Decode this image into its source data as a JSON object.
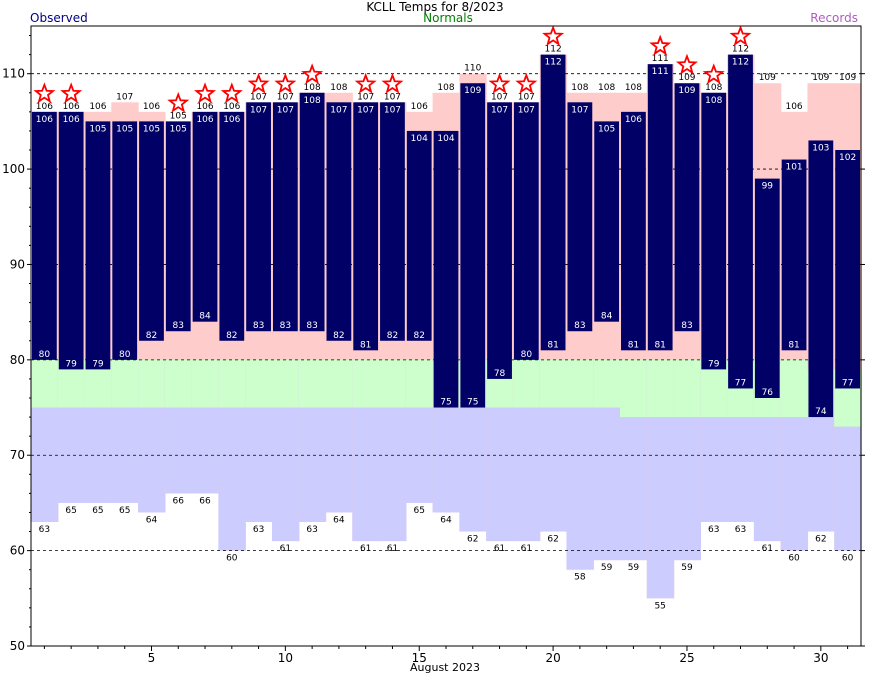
{
  "chart_data": {
    "type": "bar",
    "title": "KCLL Temps for 8/2023",
    "legend": [
      "Observed",
      "Normals",
      "Records"
    ],
    "xlabel": "August 2023",
    "ylabel": "",
    "ylim": [
      50,
      115
    ],
    "xlim": [
      0.5,
      31.5
    ],
    "y_ticks": [
      50,
      60,
      70,
      80,
      90,
      100,
      110
    ],
    "x_ticks": [
      5,
      10,
      15,
      20,
      25,
      30
    ],
    "grid": "horizontal dashed",
    "days": [
      1,
      2,
      3,
      4,
      5,
      6,
      7,
      8,
      9,
      10,
      11,
      12,
      13,
      14,
      15,
      16,
      17,
      18,
      19,
      20,
      21,
      22,
      23,
      24,
      25,
      26,
      27,
      28,
      29,
      30,
      31
    ],
    "observed_high": [
      106,
      106,
      105,
      105,
      105,
      105,
      106,
      106,
      107,
      107,
      108,
      107,
      107,
      107,
      104,
      104,
      109,
      107,
      107,
      112,
      107,
      105,
      106,
      111,
      109,
      108,
      112,
      99,
      101,
      103,
      102
    ],
    "observed_low": [
      80,
      79,
      79,
      80,
      82,
      83,
      84,
      82,
      83,
      83,
      83,
      82,
      81,
      82,
      82,
      75,
      75,
      78,
      80,
      81,
      83,
      84,
      81,
      81,
      83,
      79,
      77,
      76,
      81,
      74,
      77
    ],
    "normal_high": [
      80,
      80,
      80,
      80,
      80,
      80,
      80,
      80,
      80,
      80,
      80,
      80,
      80,
      80,
      80,
      80,
      80,
      80,
      80,
      80,
      80,
      80,
      80,
      80,
      80,
      80,
      80,
      80,
      80,
      79,
      79
    ],
    "normal_low": [
      75,
      75,
      75,
      75,
      75,
      75,
      75,
      75,
      75,
      75,
      75,
      75,
      75,
      75,
      75,
      75,
      75,
      75,
      75,
      75,
      75,
      75,
      74,
      74,
      74,
      74,
      74,
      74,
      74,
      74,
      73
    ],
    "record_high": [
      106,
      106,
      106,
      107,
      106,
      105,
      106,
      106,
      107,
      107,
      108,
      108,
      107,
      107,
      106,
      108,
      110,
      107,
      107,
      112,
      108,
      108,
      108,
      111,
      109,
      108,
      112,
      109,
      106,
      109,
      109
    ],
    "record_low": [
      63,
      65,
      65,
      65,
      64,
      66,
      66,
      60,
      63,
      61,
      63,
      64,
      61,
      61,
      65,
      64,
      62,
      61,
      61,
      62,
      58,
      59,
      59,
      55,
      59,
      63,
      63,
      61,
      60,
      62,
      60
    ],
    "record_set_days": [
      1,
      2,
      6,
      7,
      8,
      9,
      10,
      11,
      13,
      14,
      18,
      19,
      20,
      24,
      25,
      26,
      27
    ],
    "colors": {
      "observed": "#000066",
      "observed_text": "#ffffff",
      "normals": "#ccffcc",
      "normals_low": "#ccccff",
      "records": "#ffcccc",
      "star": "#ff0000",
      "legend_observed": "#000080",
      "legend_normals": "#008000",
      "legend_records": "#b05cc0"
    }
  }
}
